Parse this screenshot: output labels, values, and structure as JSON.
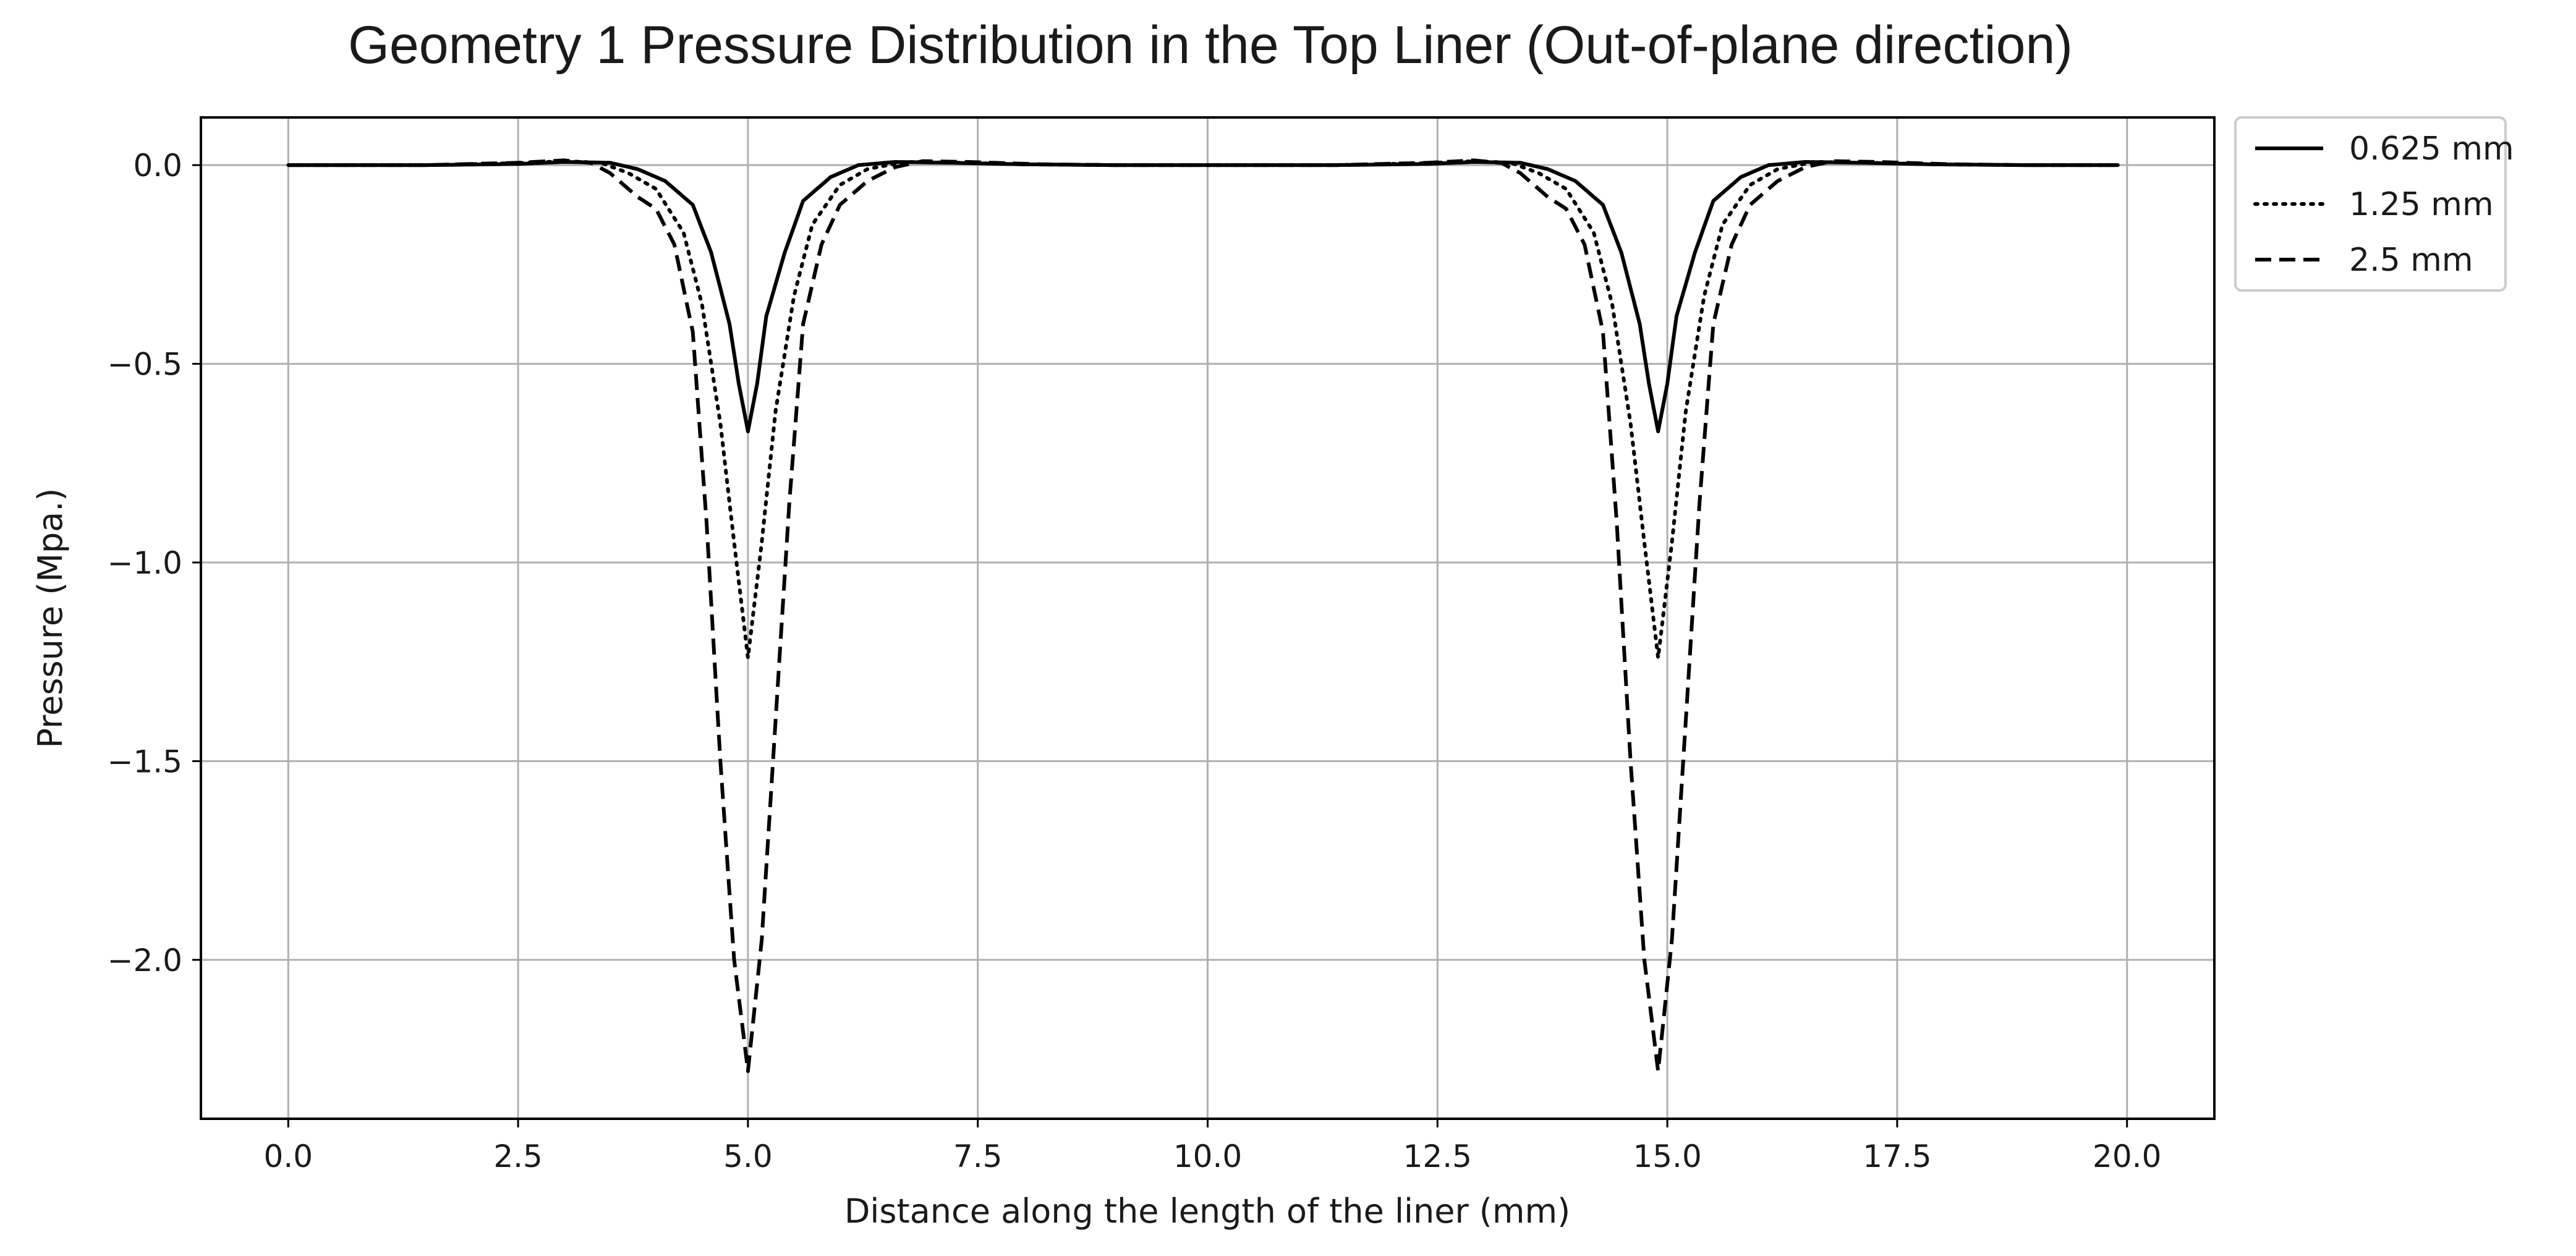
{
  "chart_data": {
    "type": "line",
    "title": "Geometry 1 Pressure Distribution in the Top Liner (Out-of-plane direction)",
    "xlabel": "Distance along the length of the liner (mm)",
    "ylabel": "Pressure (Mpa.)",
    "xlim": [
      -0.95,
      20.95
    ],
    "ylim": [
      -2.4,
      0.12
    ],
    "xticks": [
      0.0,
      2.5,
      5.0,
      7.5,
      10.0,
      12.5,
      15.0,
      17.5,
      20.0
    ],
    "xtick_labels": [
      "0.0",
      "2.5",
      "5.0",
      "7.5",
      "10.0",
      "12.5",
      "15.0",
      "17.5",
      "20.0"
    ],
    "yticks": [
      0.0,
      -0.5,
      -1.0,
      -1.5,
      -2.0
    ],
    "ytick_labels": [
      "0.0",
      "−0.5",
      "−1.0",
      "−1.5",
      "−2.0"
    ],
    "grid": true,
    "legend_position": "outside-top-right",
    "peak_positions": [
      5.0,
      14.9
    ],
    "x_range": [
      0.0,
      19.9
    ],
    "series": [
      {
        "name": "0.625 mm",
        "style": "solid",
        "color": "#000000",
        "profile": [
          [
            -3.5,
            0.0
          ],
          [
            -2.5,
            0.003
          ],
          [
            -2.0,
            0.008
          ],
          [
            -1.5,
            0.006
          ],
          [
            -1.2,
            -0.01
          ],
          [
            -0.9,
            -0.04
          ],
          [
            -0.6,
            -0.1
          ],
          [
            -0.4,
            -0.22
          ],
          [
            -0.2,
            -0.4
          ],
          [
            -0.1,
            -0.55
          ],
          [
            0.0,
            -0.67
          ],
          [
            0.1,
            -0.55
          ],
          [
            0.2,
            -0.38
          ],
          [
            0.4,
            -0.22
          ],
          [
            0.6,
            -0.09
          ],
          [
            0.9,
            -0.03
          ],
          [
            1.2,
            0.0
          ],
          [
            1.6,
            0.008
          ],
          [
            2.2,
            0.006
          ],
          [
            3.0,
            0.002
          ],
          [
            4.0,
            0.0
          ]
        ]
      },
      {
        "name": "1.25 mm",
        "style": "dotted",
        "color": "#000000",
        "profile": [
          [
            -3.5,
            0.0
          ],
          [
            -2.5,
            0.005
          ],
          [
            -2.0,
            0.01
          ],
          [
            -1.6,
            0.006
          ],
          [
            -1.3,
            -0.02
          ],
          [
            -1.0,
            -0.06
          ],
          [
            -0.7,
            -0.17
          ],
          [
            -0.5,
            -0.35
          ],
          [
            -0.3,
            -0.65
          ],
          [
            -0.15,
            -0.95
          ],
          [
            0.0,
            -1.24
          ],
          [
            0.15,
            -0.95
          ],
          [
            0.3,
            -0.62
          ],
          [
            0.5,
            -0.33
          ],
          [
            0.7,
            -0.15
          ],
          [
            1.0,
            -0.05
          ],
          [
            1.3,
            -0.01
          ],
          [
            1.7,
            0.008
          ],
          [
            2.3,
            0.006
          ],
          [
            3.0,
            0.002
          ],
          [
            4.0,
            0.0
          ]
        ]
      },
      {
        "name": "2.5 mm",
        "style": "dashed",
        "color": "#000000",
        "profile": [
          [
            -3.5,
            0.0
          ],
          [
            -2.5,
            0.006
          ],
          [
            -2.0,
            0.012
          ],
          [
            -1.7,
            0.005
          ],
          [
            -1.5,
            -0.02
          ],
          [
            -1.2,
            -0.08
          ],
          [
            -1.0,
            -0.11
          ],
          [
            -0.8,
            -0.2
          ],
          [
            -0.6,
            -0.42
          ],
          [
            -0.45,
            -0.9
          ],
          [
            -0.3,
            -1.5
          ],
          [
            -0.15,
            -2.0
          ],
          [
            0.0,
            -2.28
          ],
          [
            0.15,
            -1.95
          ],
          [
            0.3,
            -1.4
          ],
          [
            0.45,
            -0.85
          ],
          [
            0.6,
            -0.4
          ],
          [
            0.8,
            -0.2
          ],
          [
            1.0,
            -0.1
          ],
          [
            1.3,
            -0.04
          ],
          [
            1.6,
            -0.005
          ],
          [
            1.9,
            0.01
          ],
          [
            2.4,
            0.008
          ],
          [
            3.2,
            0.002
          ],
          [
            4.0,
            0.0
          ]
        ]
      }
    ]
  }
}
